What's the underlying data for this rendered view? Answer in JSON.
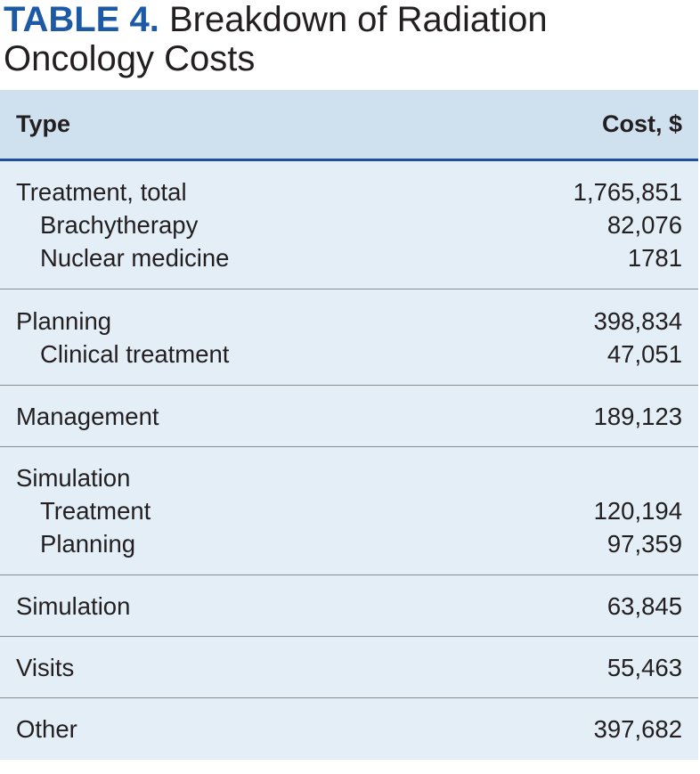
{
  "title": {
    "label": "TABLE 4.",
    "text": "Breakdown of Radiation Oncology Costs"
  },
  "table": {
    "headers": {
      "type": "Type",
      "cost": "Cost, $"
    },
    "groups": [
      {
        "rows": [
          {
            "name": "Treatment, total",
            "value": "1,765,851",
            "indent": false
          },
          {
            "name": "Brachytherapy",
            "value": "82,076",
            "indent": true
          },
          {
            "name": "Nuclear medicine",
            "value": "1781",
            "indent": true
          }
        ]
      },
      {
        "rows": [
          {
            "name": "Planning",
            "value": "398,834",
            "indent": false
          },
          {
            "name": "Clinical treatment",
            "value": "47,051",
            "indent": true
          }
        ]
      },
      {
        "rows": [
          {
            "name": "Management",
            "value": "189,123",
            "indent": false
          }
        ]
      },
      {
        "rows": [
          {
            "name": "Simulation",
            "value": "",
            "indent": false
          },
          {
            "name": "Treatment",
            "value": "120,194",
            "indent": true
          },
          {
            "name": "Planning",
            "value": "97,359",
            "indent": true
          }
        ]
      },
      {
        "rows": [
          {
            "name": "Simulation",
            "value": "63,845",
            "indent": false
          }
        ]
      },
      {
        "rows": [
          {
            "name": "Visits",
            "value": "55,463",
            "indent": false
          }
        ]
      },
      {
        "rows": [
          {
            "name": "Other",
            "value": "397,682",
            "indent": false
          }
        ]
      }
    ]
  }
}
